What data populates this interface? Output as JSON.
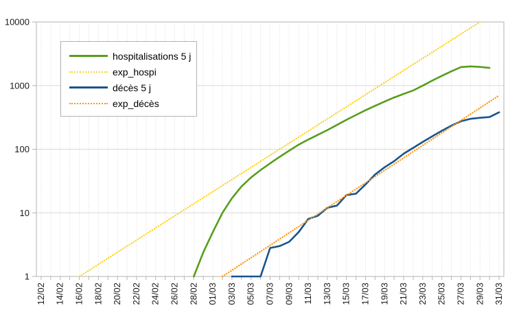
{
  "chart_data": {
    "type": "line",
    "title": "",
    "xlabel": "",
    "ylabel": "",
    "y_scale": "log",
    "ylim": [
      1,
      10000
    ],
    "y_ticks": [
      "1",
      "10",
      "100",
      "1000",
      "10000"
    ],
    "x_label_interval": 2,
    "grid": {
      "horizontal": "solid light-gray line at each power of 10",
      "vertical": "dotted light-gray line at each day"
    },
    "legend_position": "top-left-inside",
    "colors": {
      "hospitalisations": "#579D1C",
      "exp_hospi": "#FFD320",
      "deces": "#17538A",
      "exp_deces": "#FF950E",
      "grid": "#d9d9d9",
      "axis": "#b3b3b3",
      "text": "#1a1a1a"
    },
    "x_categories": [
      "12/02",
      "13/02",
      "14/02",
      "15/02",
      "16/02",
      "17/02",
      "18/02",
      "19/02",
      "20/02",
      "21/02",
      "22/02",
      "23/02",
      "24/02",
      "25/02",
      "26/02",
      "27/02",
      "28/02",
      "29/02",
      "01/03",
      "02/03",
      "03/03",
      "04/03",
      "05/03",
      "06/03",
      "07/03",
      "08/03",
      "09/03",
      "10/03",
      "11/03",
      "12/03",
      "13/03",
      "14/03",
      "15/03",
      "16/03",
      "17/03",
      "18/03",
      "19/03",
      "20/03",
      "21/03",
      "22/03",
      "23/03",
      "24/03",
      "25/03",
      "26/03",
      "27/03",
      "28/03",
      "29/03",
      "30/03",
      "31/03"
    ],
    "series": [
      {
        "name": "hospitalisations 5 j",
        "color": "#579D1C",
        "line": "solid",
        "start_date": "28/02",
        "values": [
          1,
          2.4,
          5,
          10,
          17,
          26,
          36,
          47,
          60,
          76,
          95,
          118,
          142,
          168,
          200,
          240,
          290,
          345,
          410,
          480,
          560,
          650,
          740,
          840,
          1000,
          1200,
          1420,
          1680,
          1950,
          2000,
          1960,
          1900
        ]
      },
      {
        "name": "exp_hospi",
        "color": "#FFD320",
        "line": "dotted",
        "growth_per_day_pct": 25,
        "anchors": [
          {
            "date": "16/02",
            "value": 1
          },
          {
            "date": "29/03",
            "value": 10000
          }
        ]
      },
      {
        "name": "décès 5 j",
        "color": "#17538A",
        "line": "solid",
        "start_date": "03/03",
        "values": [
          1,
          1,
          1,
          1,
          2.8,
          3,
          3.5,
          5,
          8,
          9,
          12,
          13,
          19,
          20,
          28,
          40,
          52,
          65,
          85,
          105,
          130,
          160,
          195,
          235,
          275,
          300,
          312,
          320,
          380
        ]
      },
      {
        "name": "exp_décès",
        "color": "#FF950E",
        "line": "dotted",
        "growth_per_day_pct": 25,
        "anchors": [
          {
            "date": "02/03",
            "value": 1
          },
          {
            "date": "31/03",
            "value": 700
          }
        ]
      }
    ]
  }
}
